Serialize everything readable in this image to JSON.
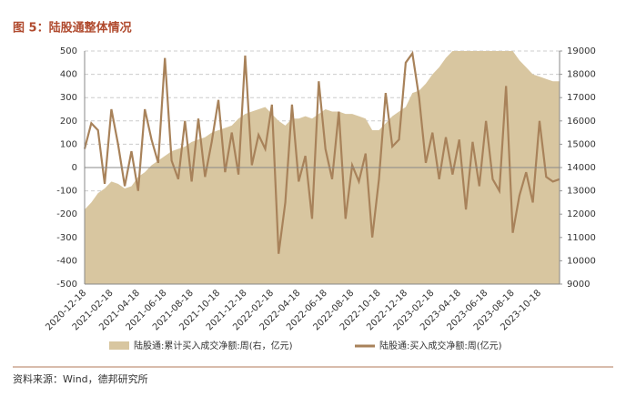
{
  "chart_data": {
    "type": "bar-line",
    "title": "图 5：陆股通整体情况",
    "source": "资料来源：Wind，德邦研究所",
    "categories": [
      "2020-12-18",
      null,
      null,
      null,
      "2021-02-18",
      null,
      null,
      null,
      "2021-04-18",
      null,
      null,
      null,
      "2021-06-18",
      null,
      null,
      null,
      "2021-08-18",
      null,
      null,
      null,
      "2021-10-18",
      null,
      null,
      null,
      "2021-12-18",
      null,
      null,
      null,
      "2022-02-18",
      null,
      null,
      null,
      "2022-04-18",
      null,
      null,
      null,
      "2022-06-18",
      null,
      null,
      null,
      "2022-08-18",
      null,
      null,
      null,
      "2022-10-18",
      null,
      null,
      null,
      "2022-12-18",
      null,
      null,
      null,
      "2023-02-18",
      null,
      null,
      null,
      "2023-04-18",
      null,
      null,
      null,
      "2023-06-18",
      null,
      null,
      null,
      "2023-08-18",
      null,
      null,
      null,
      "2023-10-18",
      null,
      null,
      null
    ],
    "series": [
      {
        "name": "陆股通:累计买入成交净额:周(右，亿元)",
        "kind": "area",
        "axis": "y2",
        "color": "#d8c6a0",
        "values": [
          12200,
          12500,
          12900,
          13100,
          13400,
          13300,
          13100,
          13200,
          13600,
          13800,
          14100,
          14300,
          14500,
          14700,
          14800,
          14900,
          15100,
          15200,
          15300,
          15500,
          15600,
          15700,
          15800,
          16100,
          16300,
          16400,
          16500,
          16600,
          16300,
          16000,
          15800,
          16100,
          16100,
          16200,
          16100,
          16300,
          16500,
          16400,
          16400,
          16300,
          16300,
          16200,
          16100,
          15600,
          15600,
          15900,
          16200,
          16400,
          16600,
          17200,
          17300,
          17600,
          18000,
          18300,
          18700,
          19000,
          19000,
          19000,
          19000,
          19000,
          19000,
          19000,
          19000,
          19000,
          19000,
          18600,
          18300,
          18000,
          17900,
          17800,
          17700,
          17700
        ]
      },
      {
        "name": "陆股通:买入成交净额:周(亿元)",
        "kind": "line",
        "color": "#a8825a",
        "values": [
          80,
          190,
          160,
          -70,
          250,
          100,
          -80,
          70,
          -100,
          250,
          120,
          20,
          470,
          30,
          -50,
          200,
          -60,
          210,
          -40,
          110,
          290,
          -20,
          150,
          -30,
          480,
          10,
          140,
          80,
          270,
          -370,
          -150,
          270,
          -60,
          50,
          -220,
          370,
          80,
          -50,
          240,
          -220,
          10,
          -60,
          60,
          -300,
          -50,
          320,
          90,
          120,
          450,
          490,
          300,
          20,
          150,
          -50,
          130,
          -30,
          120,
          -180,
          110,
          -80,
          200,
          -50,
          -100,
          350,
          -280,
          -120,
          -20,
          -150,
          200,
          -40,
          -60,
          -50
        ]
      }
    ],
    "ylim": [
      -500,
      500
    ],
    "yticks": [
      -500,
      -400,
      -300,
      -200,
      -100,
      0,
      100,
      200,
      300,
      400,
      500
    ],
    "y2lim": [
      9000,
      19000
    ],
    "y2ticks": [
      9000,
      10000,
      11000,
      12000,
      13000,
      14000,
      15000,
      16000,
      17000,
      18000,
      19000
    ],
    "grid": true
  }
}
